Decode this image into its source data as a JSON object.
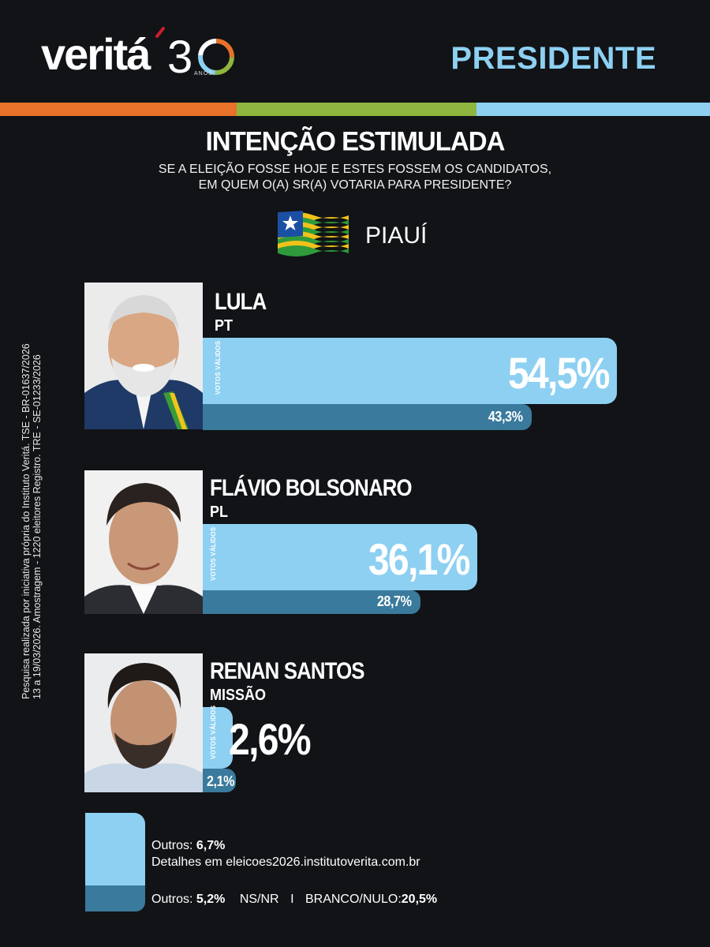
{
  "header": {
    "logo_text": "veritá",
    "logo_number": "30",
    "logo_anos": "ANOS",
    "page_title": "PRESIDENTE",
    "stripe_colors": [
      "#e8722a",
      "#8fb63f",
      "#8dd0f2"
    ]
  },
  "question": {
    "title": "INTENÇÃO ESTIMULADA",
    "subtitle_line1": "SE A ELEIÇÃO FOSSE HOJE E ESTES FOSSEM OS CANDIDATOS,",
    "subtitle_line2": "EM QUEM O(A) SR(A) VOTARIA PARA PRESIDENTE?"
  },
  "state": {
    "name": "PIAUÍ"
  },
  "side_note": {
    "line1": "Pesquisa realizada por iniciativa própria do Instituto Veritá. TSE - BR-01637/2026",
    "line2": "13 a 19/03/2026. Amostragem - 1220 eleitores Registro. TRE - SE-01233/2026"
  },
  "vv_label": "VOTOS VÁLIDOS",
  "colors": {
    "valid_bar": "#8dd0f2",
    "total_bar": "#3a7a9c",
    "background": "#111316"
  },
  "candidates": [
    {
      "name": "LULA",
      "party": "PT",
      "valid_label": "54,5%",
      "total_label": "43,3%"
    },
    {
      "name": "FLÁVIO BOLSONARO",
      "party": "PL",
      "valid_label": "36,1%",
      "total_label": "28,7%"
    },
    {
      "name": "RENAN SANTOS",
      "party": "MISSÃO",
      "valid_label": "2,6%",
      "total_label": "2,1%"
    }
  ],
  "others": {
    "valid_label": "Outros: ",
    "valid_value": "6,7%",
    "details": "Detalhes em eleicoes2026.institutoverita.com.br",
    "total_label": "Outros: ",
    "total_value": "5,2%",
    "nsnr_label": "NS/NR",
    "separator": "I",
    "branco_label": "BRANCO/NULO:",
    "branco_value": "20,5%"
  },
  "chart_data": {
    "type": "bar",
    "categories": [
      "LULA",
      "FLÁVIO BOLSONARO",
      "RENAN SANTOS",
      "Outros"
    ],
    "series": [
      {
        "name": "VOTOS VÁLIDOS",
        "values": [
          54.5,
          36.1,
          2.6,
          6.7
        ]
      },
      {
        "values": [
          43.3,
          28.7,
          2.1,
          5.2
        ]
      }
    ],
    "extra_values": {
      "NS/NR | BRANCO/NULO": 20.5
    },
    "unit": "%",
    "title": "INTENÇÃO ESTIMULADA"
  }
}
